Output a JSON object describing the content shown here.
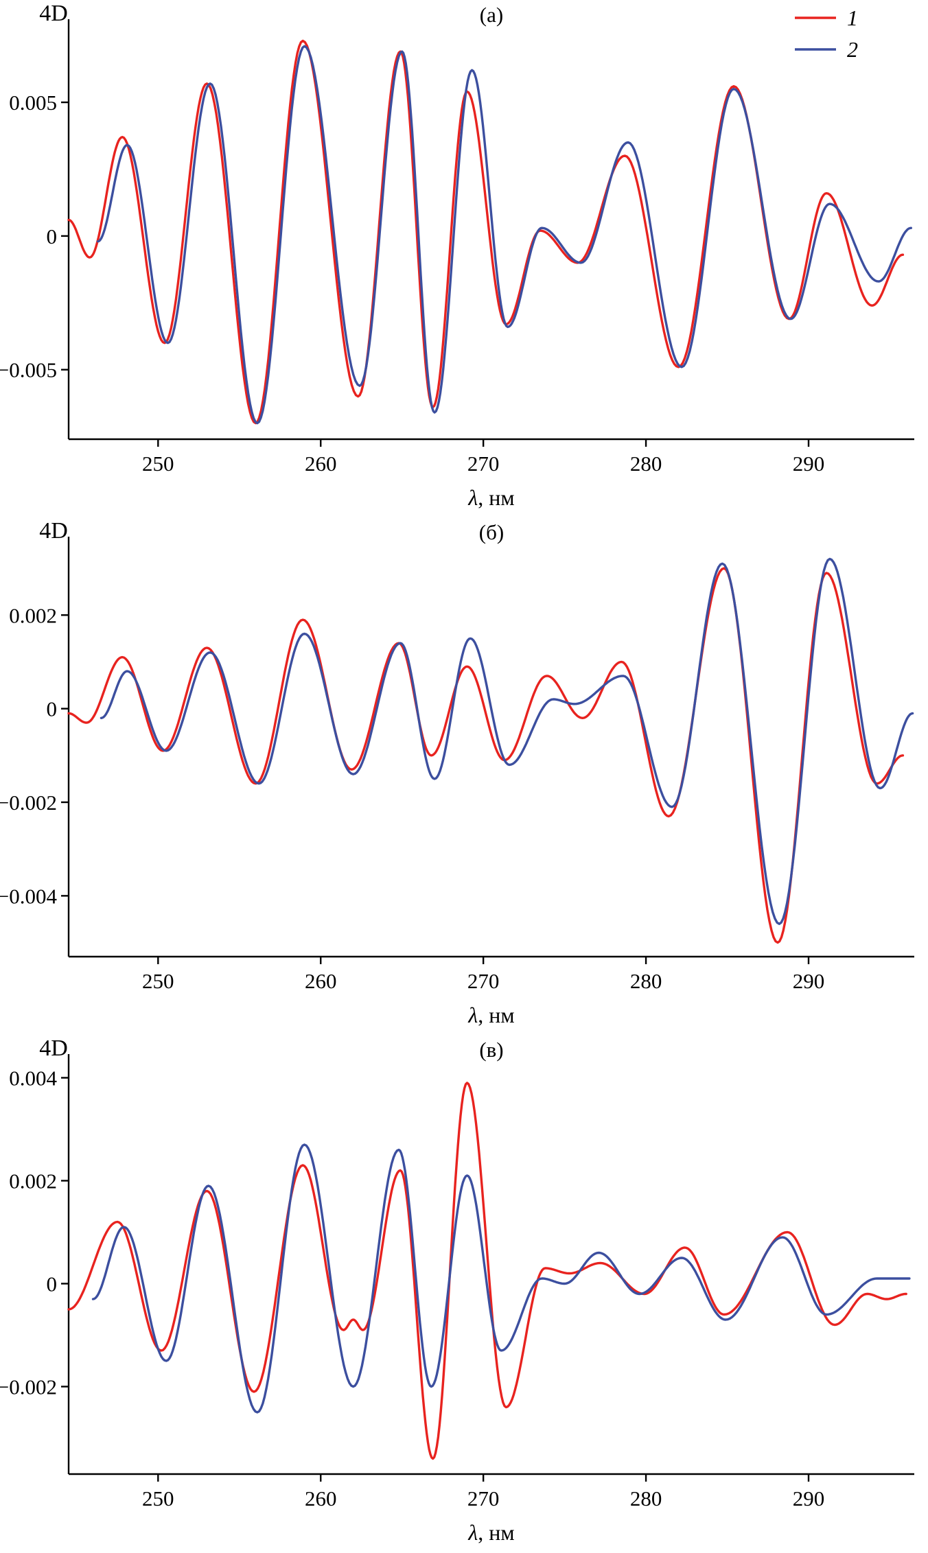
{
  "figure": {
    "background": "#ffffff",
    "legend": [
      {
        "label": "1",
        "color": "#e8231f"
      },
      {
        "label": "2",
        "color": "#3c4f9f"
      }
    ]
  },
  "chart_data": [
    {
      "type": "line",
      "title": "(а)",
      "ylabel": "4D",
      "xlabel_parts": [
        "λ",
        ", нм"
      ],
      "xlim": [
        244.5,
        296.5
      ],
      "ylim": [
        -0.0076,
        0.0078
      ],
      "xticks": [
        250,
        260,
        270,
        280,
        290
      ],
      "yticks": [
        {
          "v": 0.005,
          "label": "0.005"
        },
        {
          "v": 0,
          "label": "0"
        },
        {
          "v": -0.005,
          "label": "−0.005"
        }
      ],
      "show_legend": true,
      "grid": false,
      "series": [
        {
          "name": "1",
          "color": "#e8231f",
          "points": [
            [
              244.5,
              0.0006
            ],
            [
              245.8,
              -0.0008
            ],
            [
              247.8,
              0.0037
            ],
            [
              250.4,
              -0.004
            ],
            [
              253.0,
              0.0057
            ],
            [
              256.0,
              -0.007
            ],
            [
              258.9,
              0.0073
            ],
            [
              262.3,
              -0.006
            ],
            [
              264.9,
              0.0069
            ],
            [
              266.9,
              -0.0064
            ],
            [
              269.0,
              0.0054
            ],
            [
              271.4,
              -0.0033
            ],
            [
              273.5,
              0.0002
            ],
            [
              275.8,
              -0.001
            ],
            [
              278.7,
              0.003
            ],
            [
              282.0,
              -0.0049
            ],
            [
              285.4,
              0.0056
            ],
            [
              288.8,
              -0.0031
            ],
            [
              291.1,
              0.0016
            ],
            [
              293.9,
              -0.0026
            ],
            [
              295.8,
              -0.0007
            ]
          ]
        },
        {
          "name": "2",
          "color": "#3c4f9f",
          "points": [
            [
              246.3,
              -0.0002
            ],
            [
              248.1,
              0.0034
            ],
            [
              250.6,
              -0.004
            ],
            [
              253.2,
              0.0057
            ],
            [
              256.1,
              -0.007
            ],
            [
              259.0,
              0.0071
            ],
            [
              262.4,
              -0.0056
            ],
            [
              265.0,
              0.0069
            ],
            [
              267.0,
              -0.0066
            ],
            [
              269.3,
              0.0062
            ],
            [
              271.5,
              -0.0034
            ],
            [
              273.6,
              0.0003
            ],
            [
              276.0,
              -0.001
            ],
            [
              278.9,
              0.0035
            ],
            [
              282.2,
              -0.0049
            ],
            [
              285.4,
              0.0055
            ],
            [
              288.9,
              -0.0031
            ],
            [
              291.3,
              0.0012
            ],
            [
              294.3,
              -0.0017
            ],
            [
              296.3,
              0.0003
            ]
          ]
        }
      ]
    },
    {
      "type": "line",
      "title": "(б)",
      "ylabel": "4D",
      "xlabel_parts": [
        "λ",
        ", нм"
      ],
      "xlim": [
        244.5,
        296.5
      ],
      "ylim": [
        -0.0053,
        0.0035
      ],
      "xticks": [
        250,
        260,
        270,
        280,
        290
      ],
      "yticks": [
        {
          "v": 0.002,
          "label": "0.002"
        },
        {
          "v": 0,
          "label": "0"
        },
        {
          "v": -0.002,
          "label": "−0.002"
        },
        {
          "v": -0.004,
          "label": "−0.004"
        }
      ],
      "show_legend": false,
      "grid": false,
      "series": [
        {
          "name": "1",
          "color": "#e8231f",
          "points": [
            [
              244.5,
              -0.0001
            ],
            [
              245.6,
              -0.0003
            ],
            [
              247.8,
              0.0011
            ],
            [
              250.3,
              -0.0009
            ],
            [
              253.0,
              0.0013
            ],
            [
              256.0,
              -0.0016
            ],
            [
              258.9,
              0.0019
            ],
            [
              261.9,
              -0.0013
            ],
            [
              264.8,
              0.0014
            ],
            [
              266.8,
              -0.001
            ],
            [
              269.0,
              0.0009
            ],
            [
              271.3,
              -0.0011
            ],
            [
              273.9,
              0.0007
            ],
            [
              276.1,
              -0.0002
            ],
            [
              278.5,
              0.001
            ],
            [
              281.4,
              -0.0023
            ],
            [
              284.8,
              0.003
            ],
            [
              288.1,
              -0.005
            ],
            [
              291.1,
              0.0029
            ],
            [
              294.2,
              -0.0016
            ],
            [
              295.8,
              -0.001
            ]
          ]
        },
        {
          "name": "2",
          "color": "#3c4f9f",
          "points": [
            [
              246.5,
              -0.0002
            ],
            [
              248.1,
              0.0008
            ],
            [
              250.5,
              -0.0009
            ],
            [
              253.2,
              0.0012
            ],
            [
              256.2,
              -0.0016
            ],
            [
              259.0,
              0.0016
            ],
            [
              262.0,
              -0.0014
            ],
            [
              264.9,
              0.0014
            ],
            [
              267.0,
              -0.0015
            ],
            [
              269.2,
              0.0015
            ],
            [
              271.6,
              -0.0012
            ],
            [
              274.3,
              0.0002
            ],
            [
              275.6,
              0.0001
            ],
            [
              278.6,
              0.0007
            ],
            [
              281.6,
              -0.0021
            ],
            [
              284.7,
              0.0031
            ],
            [
              288.2,
              -0.0046
            ],
            [
              291.3,
              0.0032
            ],
            [
              294.4,
              -0.0017
            ],
            [
              296.4,
              -0.0001
            ]
          ]
        }
      ]
    },
    {
      "type": "line",
      "title": "(в)",
      "ylabel": "4D",
      "xlabel_parts": [
        "λ",
        ", нм"
      ],
      "xlim": [
        244.5,
        296.5
      ],
      "ylim": [
        -0.0037,
        0.0043
      ],
      "xticks": [
        250,
        260,
        270,
        280,
        290
      ],
      "yticks": [
        {
          "v": 0.004,
          "label": "0.004"
        },
        {
          "v": 0.002,
          "label": "0.002"
        },
        {
          "v": 0,
          "label": "0"
        },
        {
          "v": -0.002,
          "label": "−0.002"
        }
      ],
      "show_legend": false,
      "grid": false,
      "series": [
        {
          "name": "1",
          "color": "#e8231f",
          "points": [
            [
              244.5,
              -0.0005
            ],
            [
              247.5,
              0.0012
            ],
            [
              250.2,
              -0.0013
            ],
            [
              253.0,
              0.0018
            ],
            [
              255.9,
              -0.0021
            ],
            [
              258.9,
              0.0023
            ],
            [
              261.4,
              -0.0009
            ],
            [
              262.0,
              -0.0007
            ],
            [
              262.6,
              -0.0009
            ],
            [
              264.9,
              0.0022
            ],
            [
              266.9,
              -0.0034
            ],
            [
              269.0,
              0.0039
            ],
            [
              271.4,
              -0.0024
            ],
            [
              273.8,
              0.0003
            ],
            [
              275.3,
              0.0002
            ],
            [
              277.2,
              0.0004
            ],
            [
              279.9,
              -0.0002
            ],
            [
              282.4,
              0.0007
            ],
            [
              284.8,
              -0.0006
            ],
            [
              288.7,
              0.001
            ],
            [
              291.6,
              -0.0008
            ],
            [
              293.6,
              -0.0002
            ],
            [
              294.8,
              -0.0003
            ],
            [
              296.0,
              -0.0002
            ]
          ]
        },
        {
          "name": "2",
          "color": "#3c4f9f",
          "points": [
            [
              246.0,
              -0.0003
            ],
            [
              247.9,
              0.0011
            ],
            [
              250.5,
              -0.0015
            ],
            [
              253.1,
              0.0019
            ],
            [
              256.1,
              -0.0025
            ],
            [
              259.0,
              0.0027
            ],
            [
              262.0,
              -0.002
            ],
            [
              264.8,
              0.0026
            ],
            [
              266.8,
              -0.002
            ],
            [
              269.0,
              0.0021
            ],
            [
              271.1,
              -0.0013
            ],
            [
              273.6,
              0.0001
            ],
            [
              275.0,
              0.0
            ],
            [
              277.1,
              0.0006
            ],
            [
              279.6,
              -0.0002
            ],
            [
              282.2,
              0.0005
            ],
            [
              284.9,
              -0.0007
            ],
            [
              288.4,
              0.0009
            ],
            [
              291.1,
              -0.0006
            ],
            [
              294.2,
              0.0001
            ],
            [
              296.2,
              0.0001
            ]
          ]
        }
      ]
    }
  ]
}
